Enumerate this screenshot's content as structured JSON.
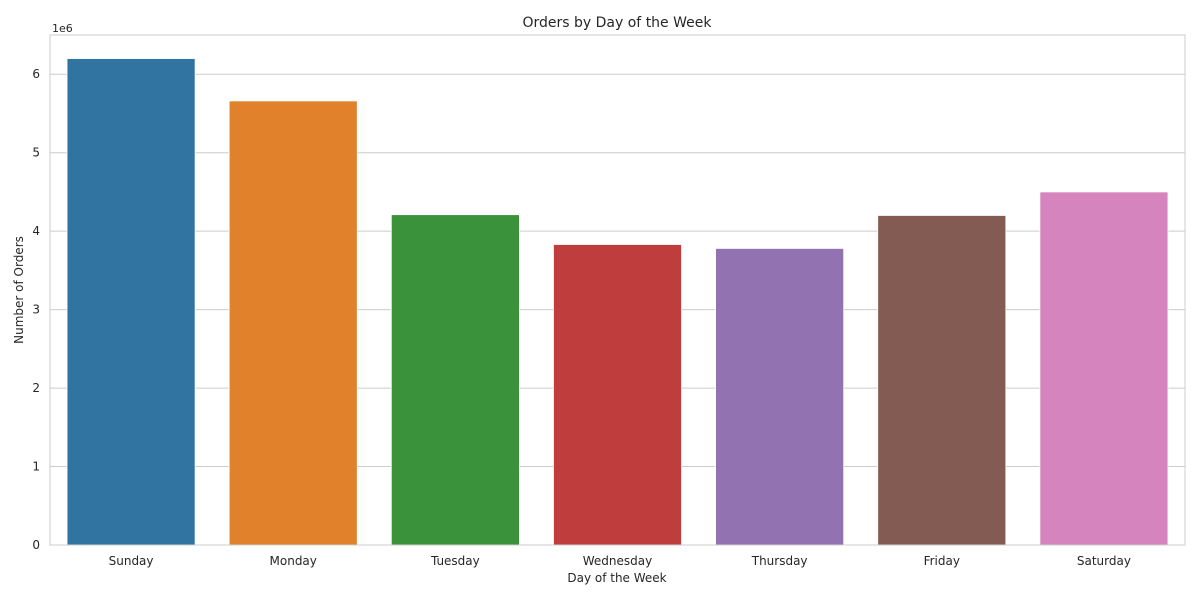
{
  "chart_data": {
    "type": "bar",
    "title": "Orders by Day of the Week",
    "xlabel": "Day of the Week",
    "ylabel": "Number of Orders",
    "offset_label": "1e6",
    "categories": [
      "Sunday",
      "Monday",
      "Tuesday",
      "Wednesday",
      "Thursday",
      "Friday",
      "Saturday"
    ],
    "values": [
      6200000,
      5660000,
      4210000,
      3830000,
      3780000,
      4200000,
      4500000
    ],
    "colors": [
      "#3274a1",
      "#e1812c",
      "#3a923a",
      "#c03d3e",
      "#9372b2",
      "#845b53",
      "#d684bd"
    ],
    "ylim": [
      0,
      6500000
    ],
    "yticks": [
      0,
      1,
      2,
      3,
      4,
      5,
      6
    ],
    "ytick_labels": [
      "0",
      "1",
      "2",
      "3",
      "4",
      "5",
      "6"
    ],
    "grid": "horizontal",
    "style": {
      "grid_color": "#cccccc",
      "frame_color": "#cccccc",
      "text_color": "#262626"
    }
  }
}
